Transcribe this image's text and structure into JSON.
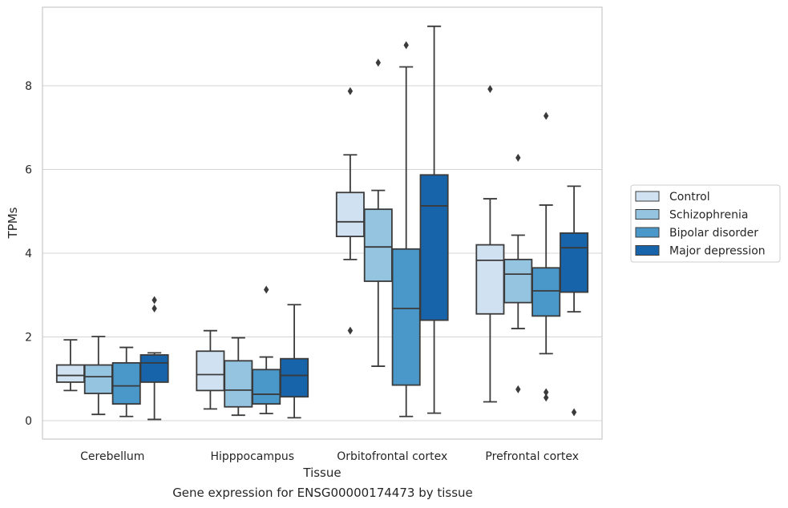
{
  "caption": "Gene expression for ENSG00000174473 by tissue",
  "chart_data": {
    "type": "box",
    "title": "",
    "xlabel": "Tissue",
    "ylabel": "TPMs",
    "ylim": [
      -0.35,
      9.95
    ],
    "yticks": [
      0,
      2,
      4,
      6,
      8
    ],
    "grid": "horizontal",
    "legend_position": "right",
    "categories": [
      "Cerebellum",
      "Hipppocampus",
      "Orbitofrontal cortex",
      "Prefrontal cortex"
    ],
    "series": [
      {
        "name": "Control",
        "color": "#d0e1f2",
        "boxes": [
          {
            "whislo": 0.72,
            "q1": 0.92,
            "med": 1.08,
            "q3": 1.33,
            "whishi": 1.93,
            "fliers": []
          },
          {
            "whislo": 0.28,
            "q1": 0.72,
            "med": 1.1,
            "q3": 1.66,
            "whishi": 2.15,
            "fliers": []
          },
          {
            "whislo": 3.85,
            "q1": 4.4,
            "med": 4.75,
            "q3": 5.45,
            "whishi": 6.35,
            "fliers": [
              7.87,
              2.15
            ]
          },
          {
            "whislo": 0.45,
            "q1": 2.55,
            "med": 3.83,
            "q3": 4.2,
            "whishi": 5.3,
            "fliers": [
              7.92
            ]
          }
        ]
      },
      {
        "name": "Schizophrenia",
        "color": "#94c4df",
        "boxes": [
          {
            "whislo": 0.15,
            "q1": 0.65,
            "med": 1.05,
            "q3": 1.33,
            "whishi": 2.01,
            "fliers": []
          },
          {
            "whislo": 0.13,
            "q1": 0.33,
            "med": 0.73,
            "q3": 1.43,
            "whishi": 1.98,
            "fliers": []
          },
          {
            "whislo": 1.3,
            "q1": 3.33,
            "med": 4.15,
            "q3": 5.05,
            "whishi": 5.5,
            "fliers": [
              8.55
            ]
          },
          {
            "whislo": 2.2,
            "q1": 2.82,
            "med": 3.5,
            "q3": 3.85,
            "whishi": 4.43,
            "fliers": [
              6.28,
              0.75
            ]
          }
        ]
      },
      {
        "name": "Bipolar disorder",
        "color": "#4a98c9",
        "boxes": [
          {
            "whislo": 0.1,
            "q1": 0.4,
            "med": 0.83,
            "q3": 1.38,
            "whishi": 1.75,
            "fliers": []
          },
          {
            "whislo": 0.17,
            "q1": 0.4,
            "med": 0.63,
            "q3": 1.22,
            "whishi": 1.52,
            "fliers": [
              3.13
            ]
          },
          {
            "whislo": 0.1,
            "q1": 0.85,
            "med": 2.68,
            "q3": 4.1,
            "whishi": 8.45,
            "fliers": [
              8.97
            ]
          },
          {
            "whislo": 1.6,
            "q1": 2.5,
            "med": 3.1,
            "q3": 3.65,
            "whishi": 5.15,
            "fliers": [
              7.28,
              0.68,
              0.55
            ]
          }
        ]
      },
      {
        "name": "Major depression",
        "color": "#1764ab",
        "boxes": [
          {
            "whislo": 0.03,
            "q1": 0.92,
            "med": 1.38,
            "q3": 1.57,
            "whishi": 1.62,
            "fliers": [
              2.88,
              2.68
            ]
          },
          {
            "whislo": 0.07,
            "q1": 0.57,
            "med": 1.08,
            "q3": 1.48,
            "whishi": 2.77,
            "fliers": []
          },
          {
            "whislo": 0.18,
            "q1": 2.4,
            "med": 5.13,
            "q3": 5.87,
            "whishi": 9.42,
            "fliers": []
          },
          {
            "whislo": 2.6,
            "q1": 3.07,
            "med": 4.13,
            "q3": 4.48,
            "whishi": 5.6,
            "fliers": [
              0.2
            ]
          }
        ]
      }
    ]
  }
}
